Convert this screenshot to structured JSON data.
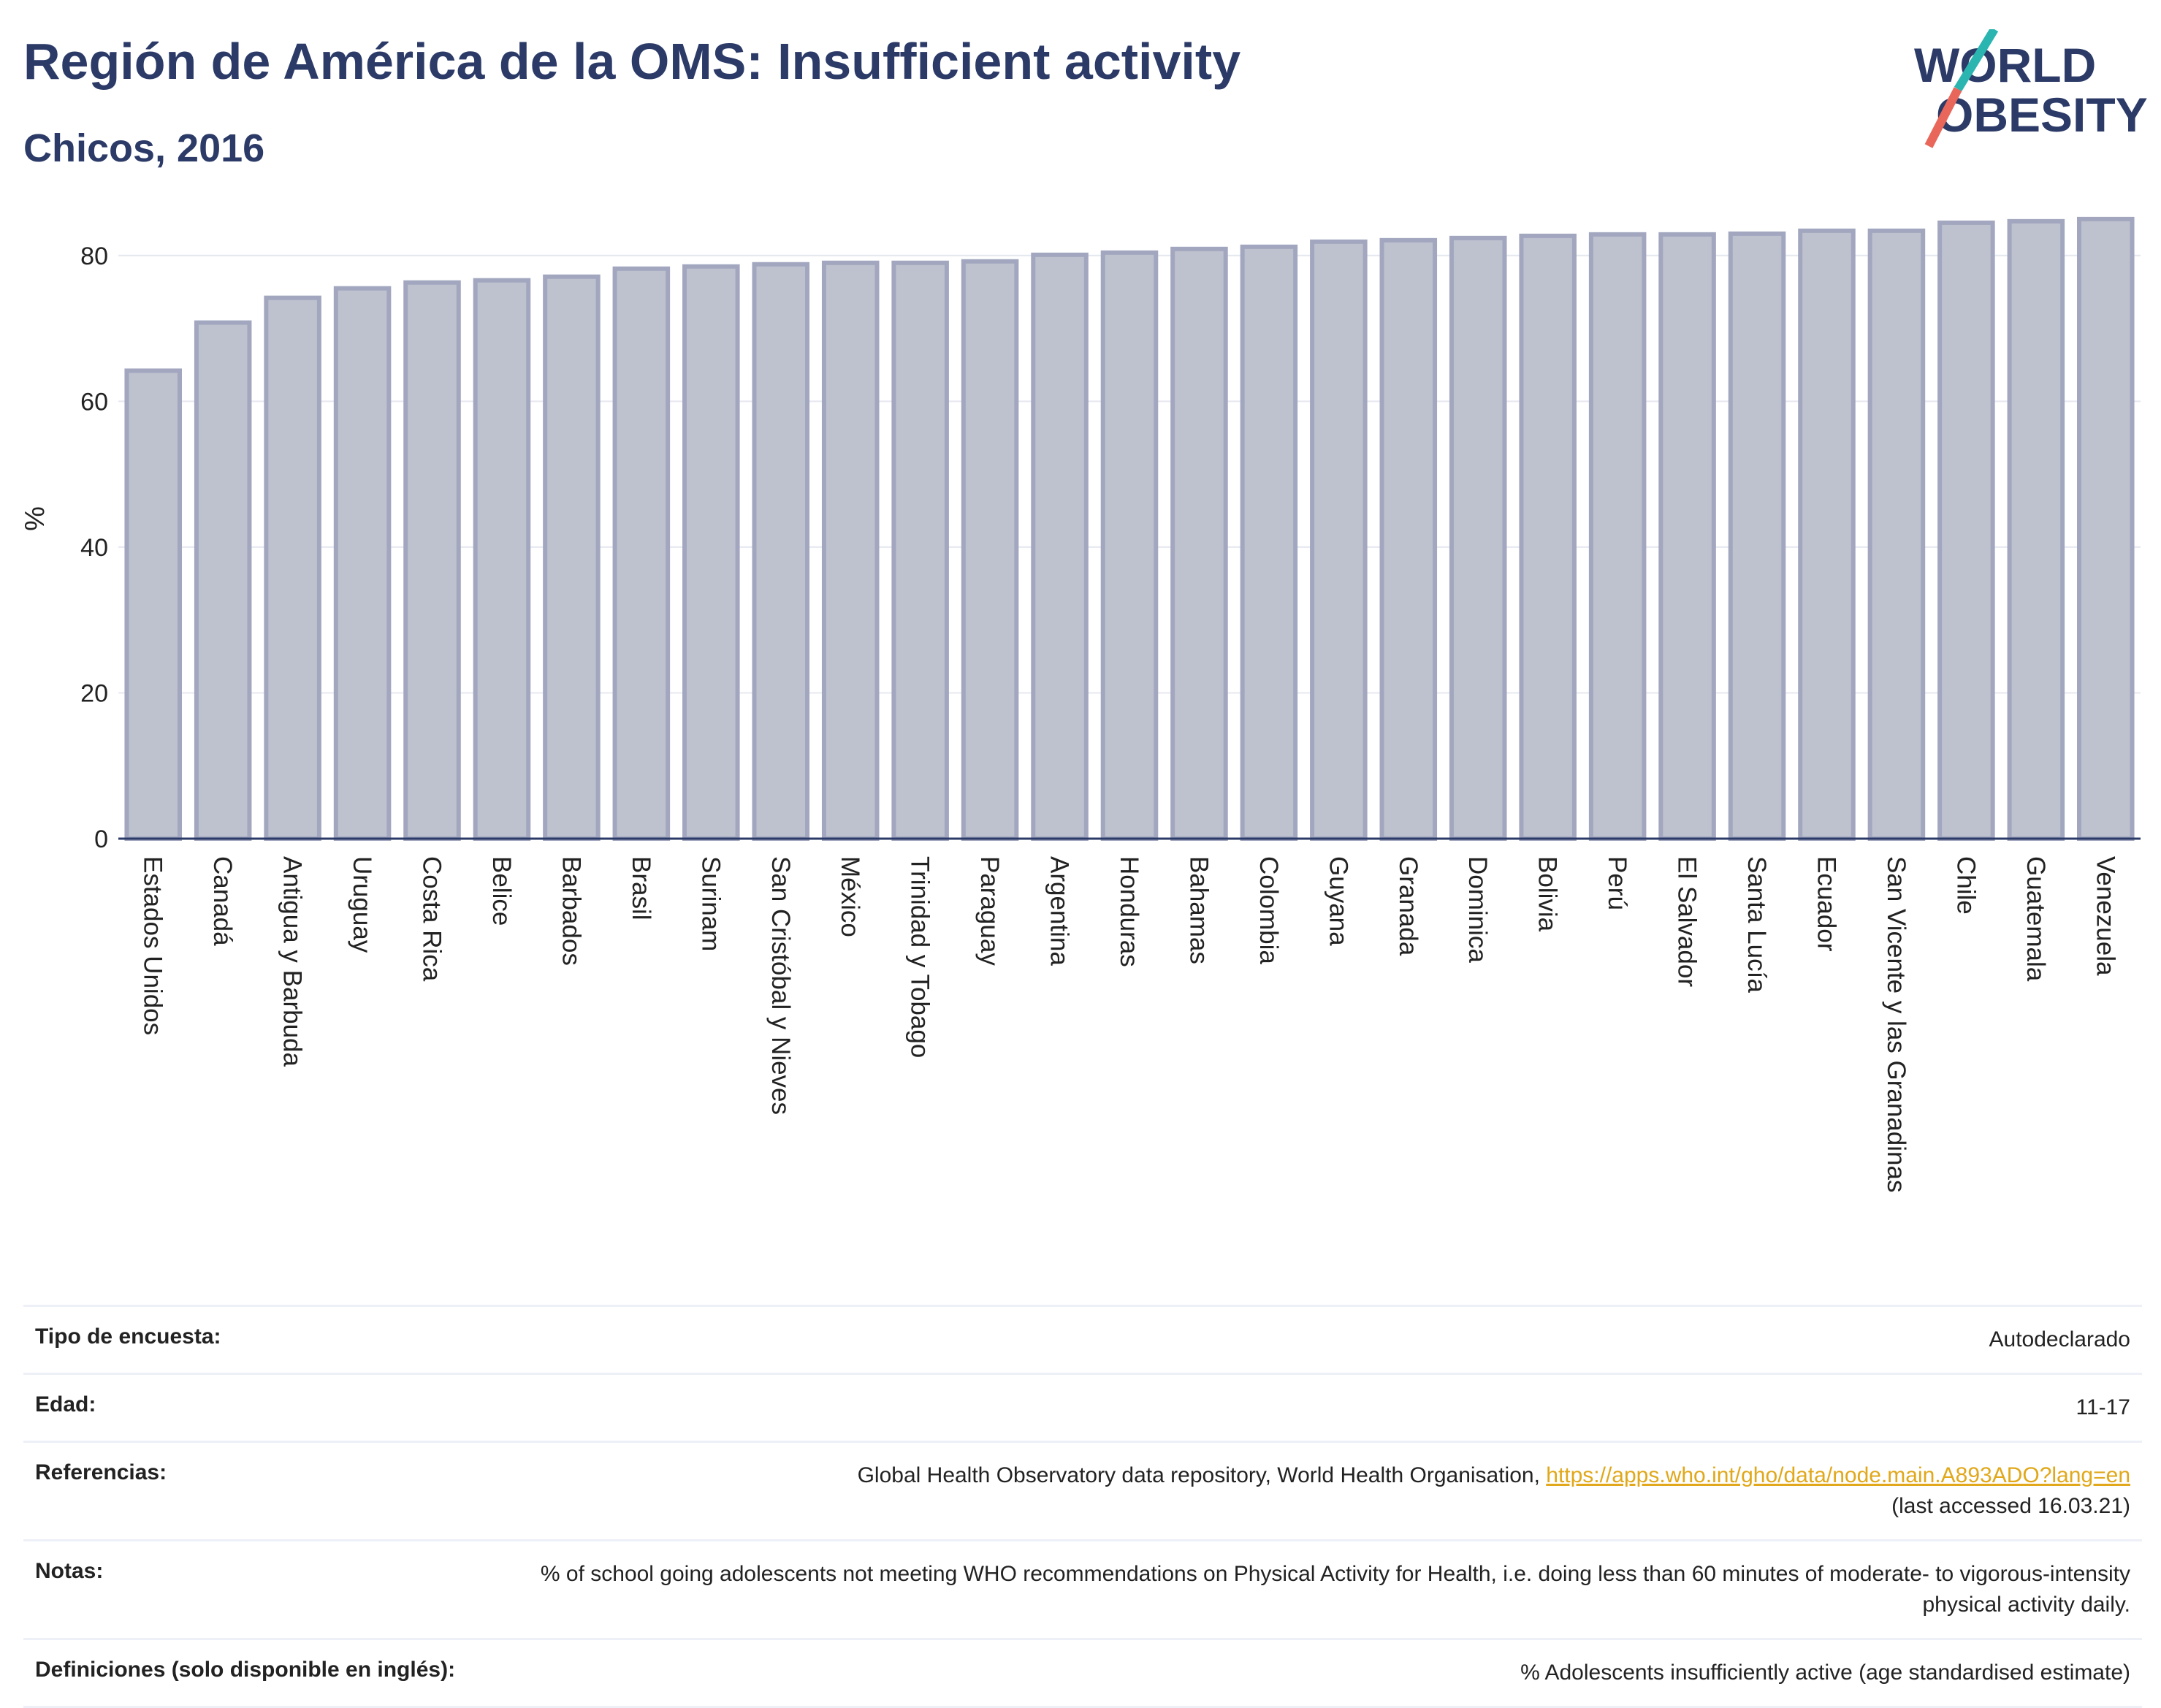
{
  "header": {
    "title": "Región de América de la OMS: Insufficient activity",
    "subtitle": "Chicos, 2016",
    "logo_line1": "WORLD",
    "logo_line2": "OBESITY"
  },
  "chart_data": {
    "type": "bar",
    "categories": [
      "Estados Unidos",
      "Canadá",
      "Antigua y Barbuda",
      "Uruguay",
      "Costa Rica",
      "Belice",
      "Barbados",
      "Brasil",
      "Surinam",
      "San Cristóbal y Nieves",
      "México",
      "Trinidad y Tobago",
      "Paraguay",
      "Argentina",
      "Honduras",
      "Bahamas",
      "Colombia",
      "Guyana",
      "Granada",
      "Dominica",
      "Bolivia",
      "Perú",
      "El Salvador",
      "Santa Lucía",
      "Ecuador",
      "San Vicente y las Granadinas",
      "Chile",
      "Guatemala",
      "Venezuela"
    ],
    "values": [
      64.2,
      70.8,
      74.2,
      75.5,
      76.3,
      76.6,
      77.1,
      78.2,
      78.5,
      78.8,
      79.0,
      79.0,
      79.2,
      80.1,
      80.4,
      80.9,
      81.2,
      81.9,
      82.1,
      82.4,
      82.7,
      82.9,
      82.9,
      83.0,
      83.4,
      83.4,
      84.5,
      84.7,
      85.0
    ],
    "ylabel": "%",
    "yticks": [
      0,
      20,
      40,
      60,
      80
    ],
    "ylim": [
      0,
      90
    ],
    "grid": true,
    "bar_fill": "#bec1ce",
    "bar_stroke": "#a2a7bf"
  },
  "info_table": [
    {
      "label": "Tipo de encuesta:",
      "value": "Autodeclarado"
    },
    {
      "label": "Edad:",
      "value": "11-17"
    },
    {
      "label": "Referencias:",
      "value": "Global Health Observatory data repository, World Health Organisation, ",
      "link": "https://apps.who.int/gho/data/node.main.A893ADO?lang=en",
      "value2": "(last accessed 16.03.21)"
    },
    {
      "label": "Notas:",
      "value": "% of school going adolescents not meeting WHO recommendations on Physical Activity for Health, i.e. doing less than 60 minutes of moderate- to vigorous-intensity physical activity daily."
    },
    {
      "label": "Definiciones (solo disponible en inglés):",
      "value": "% Adolescents insufficiently active (age standardised estimate)"
    }
  ],
  "colors": {
    "title": "#2b3a67",
    "link": "#e0a81a",
    "logo_teal": "#2bb5b0",
    "logo_coral": "#e8675a"
  }
}
